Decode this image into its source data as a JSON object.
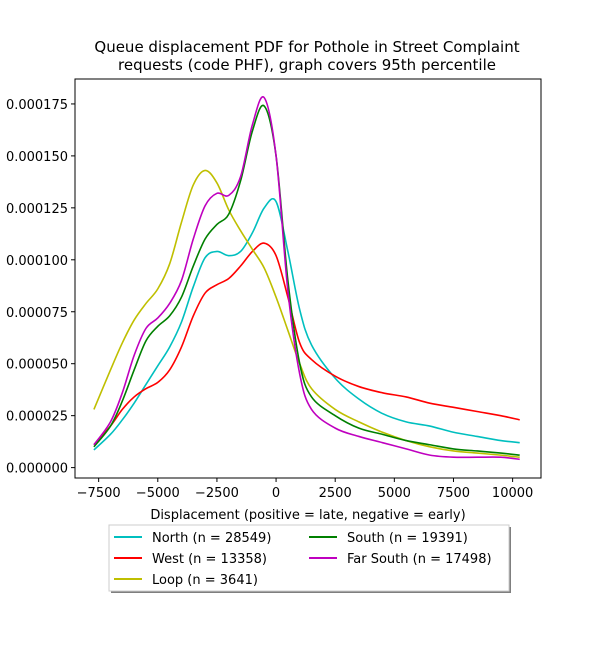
{
  "chart_data": {
    "type": "line",
    "title": "Queue displacement PDF for Pothole in Street Complaint\nrequests (code PHF), graph covers 95th percentile",
    "xlabel": "Displacement (positive = late, negative = early)",
    "ylabel": "",
    "xlim": [
      -8500,
      11200
    ],
    "ylim": [
      -5e-06,
      0.000187
    ],
    "xticks": [
      -7500,
      -5000,
      -2500,
      0,
      2500,
      5000,
      7500,
      10000
    ],
    "xtick_labels": [
      "−7500",
      "−5000",
      "−2500",
      "0",
      "2500",
      "5000",
      "7500",
      "10000"
    ],
    "yticks": [
      0.0,
      2.5e-05,
      5e-05,
      7.5e-05,
      0.0001,
      0.000125,
      0.00015,
      0.000175
    ],
    "ytick_labels": [
      "0.000000",
      "0.000025",
      "0.000050",
      "0.000075",
      "0.000100",
      "0.000125",
      "0.000150",
      "0.000175"
    ],
    "grid": false,
    "legend_position": "below-center",
    "series": [
      {
        "name": "North (n = 28549)",
        "color": "#00bfbf",
        "x": [
          -7700,
          -7000,
          -6500,
          -6000,
          -5500,
          -5000,
          -4500,
          -4000,
          -3500,
          -3000,
          -2500,
          -2000,
          -1500,
          -1000,
          -500,
          0,
          500,
          1000,
          1500,
          2500,
          3500,
          4500,
          5500,
          6500,
          7500,
          8500,
          9500,
          10300
        ],
        "y": [
          8.5e-06,
          1.6e-05,
          2.3e-05,
          3.1e-05,
          4e-05,
          4.9e-05,
          5.8e-05,
          7e-05,
          8.7e-05,
          0.000101,
          0.000104,
          0.000102,
          0.000104,
          0.000113,
          0.000125,
          0.000128,
          0.000104,
          7.6e-05,
          5.9e-05,
          4.3e-05,
          3.3e-05,
          2.6e-05,
          2.2e-05,
          2e-05,
          1.7e-05,
          1.5e-05,
          1.3e-05,
          1.2e-05
        ]
      },
      {
        "name": "West (n = 13358)",
        "color": "#ff0000",
        "x": [
          -7700,
          -7000,
          -6500,
          -6000,
          -5500,
          -5000,
          -4500,
          -4000,
          -3500,
          -3000,
          -2500,
          -2000,
          -1500,
          -1000,
          -500,
          0,
          500,
          1000,
          1500,
          2500,
          3500,
          4500,
          5500,
          6500,
          7500,
          8500,
          9500,
          10300
        ],
        "y": [
          1.1e-05,
          2e-05,
          2.8e-05,
          3.4e-05,
          3.8e-05,
          4.1e-05,
          4.7e-05,
          5.8e-05,
          7.3e-05,
          8.4e-05,
          8.8e-05,
          9.1e-05,
          9.7e-05,
          0.000104,
          0.000108,
          0.000102,
          8.2e-05,
          6e-05,
          5.2e-05,
          4.4e-05,
          3.9e-05,
          3.6e-05,
          3.4e-05,
          3.1e-05,
          2.9e-05,
          2.7e-05,
          2.5e-05,
          2.3e-05
        ]
      },
      {
        "name": "Loop (n = 3641)",
        "color": "#bfbf00",
        "x": [
          -7700,
          -7000,
          -6500,
          -6000,
          -5500,
          -5000,
          -4500,
          -4000,
          -3500,
          -3000,
          -2500,
          -2000,
          -1500,
          -1000,
          -500,
          0,
          500,
          1000,
          1500,
          2500,
          3500,
          4500,
          5500,
          6500,
          7500,
          8500,
          9500,
          10300
        ],
        "y": [
          2.8e-05,
          4.7e-05,
          6e-05,
          7.1e-05,
          7.9e-05,
          8.6e-05,
          9.8e-05,
          0.000118,
          0.000136,
          0.000143,
          0.000137,
          0.000124,
          0.000114,
          0.000105,
          9.6e-05,
          8.2e-05,
          6.6e-05,
          5e-05,
          3.8e-05,
          2.8e-05,
          2.2e-05,
          1.7e-05,
          1.3e-05,
          1e-05,
          8e-06,
          7e-06,
          6e-06,
          5e-06
        ]
      },
      {
        "name": "South (n = 19391)",
        "color": "#008000",
        "x": [
          -7700,
          -7000,
          -6500,
          -6000,
          -5500,
          -5000,
          -4500,
          -4000,
          -3500,
          -3000,
          -2500,
          -2000,
          -1500,
          -1000,
          -500,
          0,
          500,
          1000,
          1500,
          2500,
          3500,
          4500,
          5500,
          6500,
          7500,
          8500,
          9500,
          10300
        ],
        "y": [
          1e-05,
          2e-05,
          3.2e-05,
          4.7e-05,
          6.1e-05,
          6.8e-05,
          7.3e-05,
          8.2e-05,
          9.7e-05,
          0.00011,
          0.000117,
          0.000122,
          0.000138,
          0.000162,
          0.000174,
          0.00015,
          9e-05,
          5e-05,
          3.4e-05,
          2.5e-05,
          1.9e-05,
          1.6e-05,
          1.3e-05,
          1.1e-05,
          9e-06,
          8e-06,
          7e-06,
          6e-06
        ]
      },
      {
        "name": "Far South (n = 17498)",
        "color": "#bf00bf",
        "x": [
          -7700,
          -7000,
          -6500,
          -6000,
          -5500,
          -5000,
          -4500,
          -4000,
          -3500,
          -3000,
          -2500,
          -2000,
          -1500,
          -1000,
          -500,
          0,
          500,
          1000,
          1500,
          2500,
          3500,
          4500,
          5500,
          6500,
          7500,
          8500,
          9500,
          10300
        ],
        "y": [
          1.1e-05,
          2.2e-05,
          3.6e-05,
          5.4e-05,
          6.7e-05,
          7.2e-05,
          7.9e-05,
          9e-05,
          0.00011,
          0.000126,
          0.000132,
          0.000131,
          0.00014,
          0.000165,
          0.000178,
          0.00015,
          8.5e-05,
          4.5e-05,
          2.8e-05,
          1.9e-05,
          1.5e-05,
          1.2e-05,
          9e-06,
          6e-06,
          5e-06,
          5e-06,
          5e-06,
          4e-06
        ]
      }
    ]
  }
}
